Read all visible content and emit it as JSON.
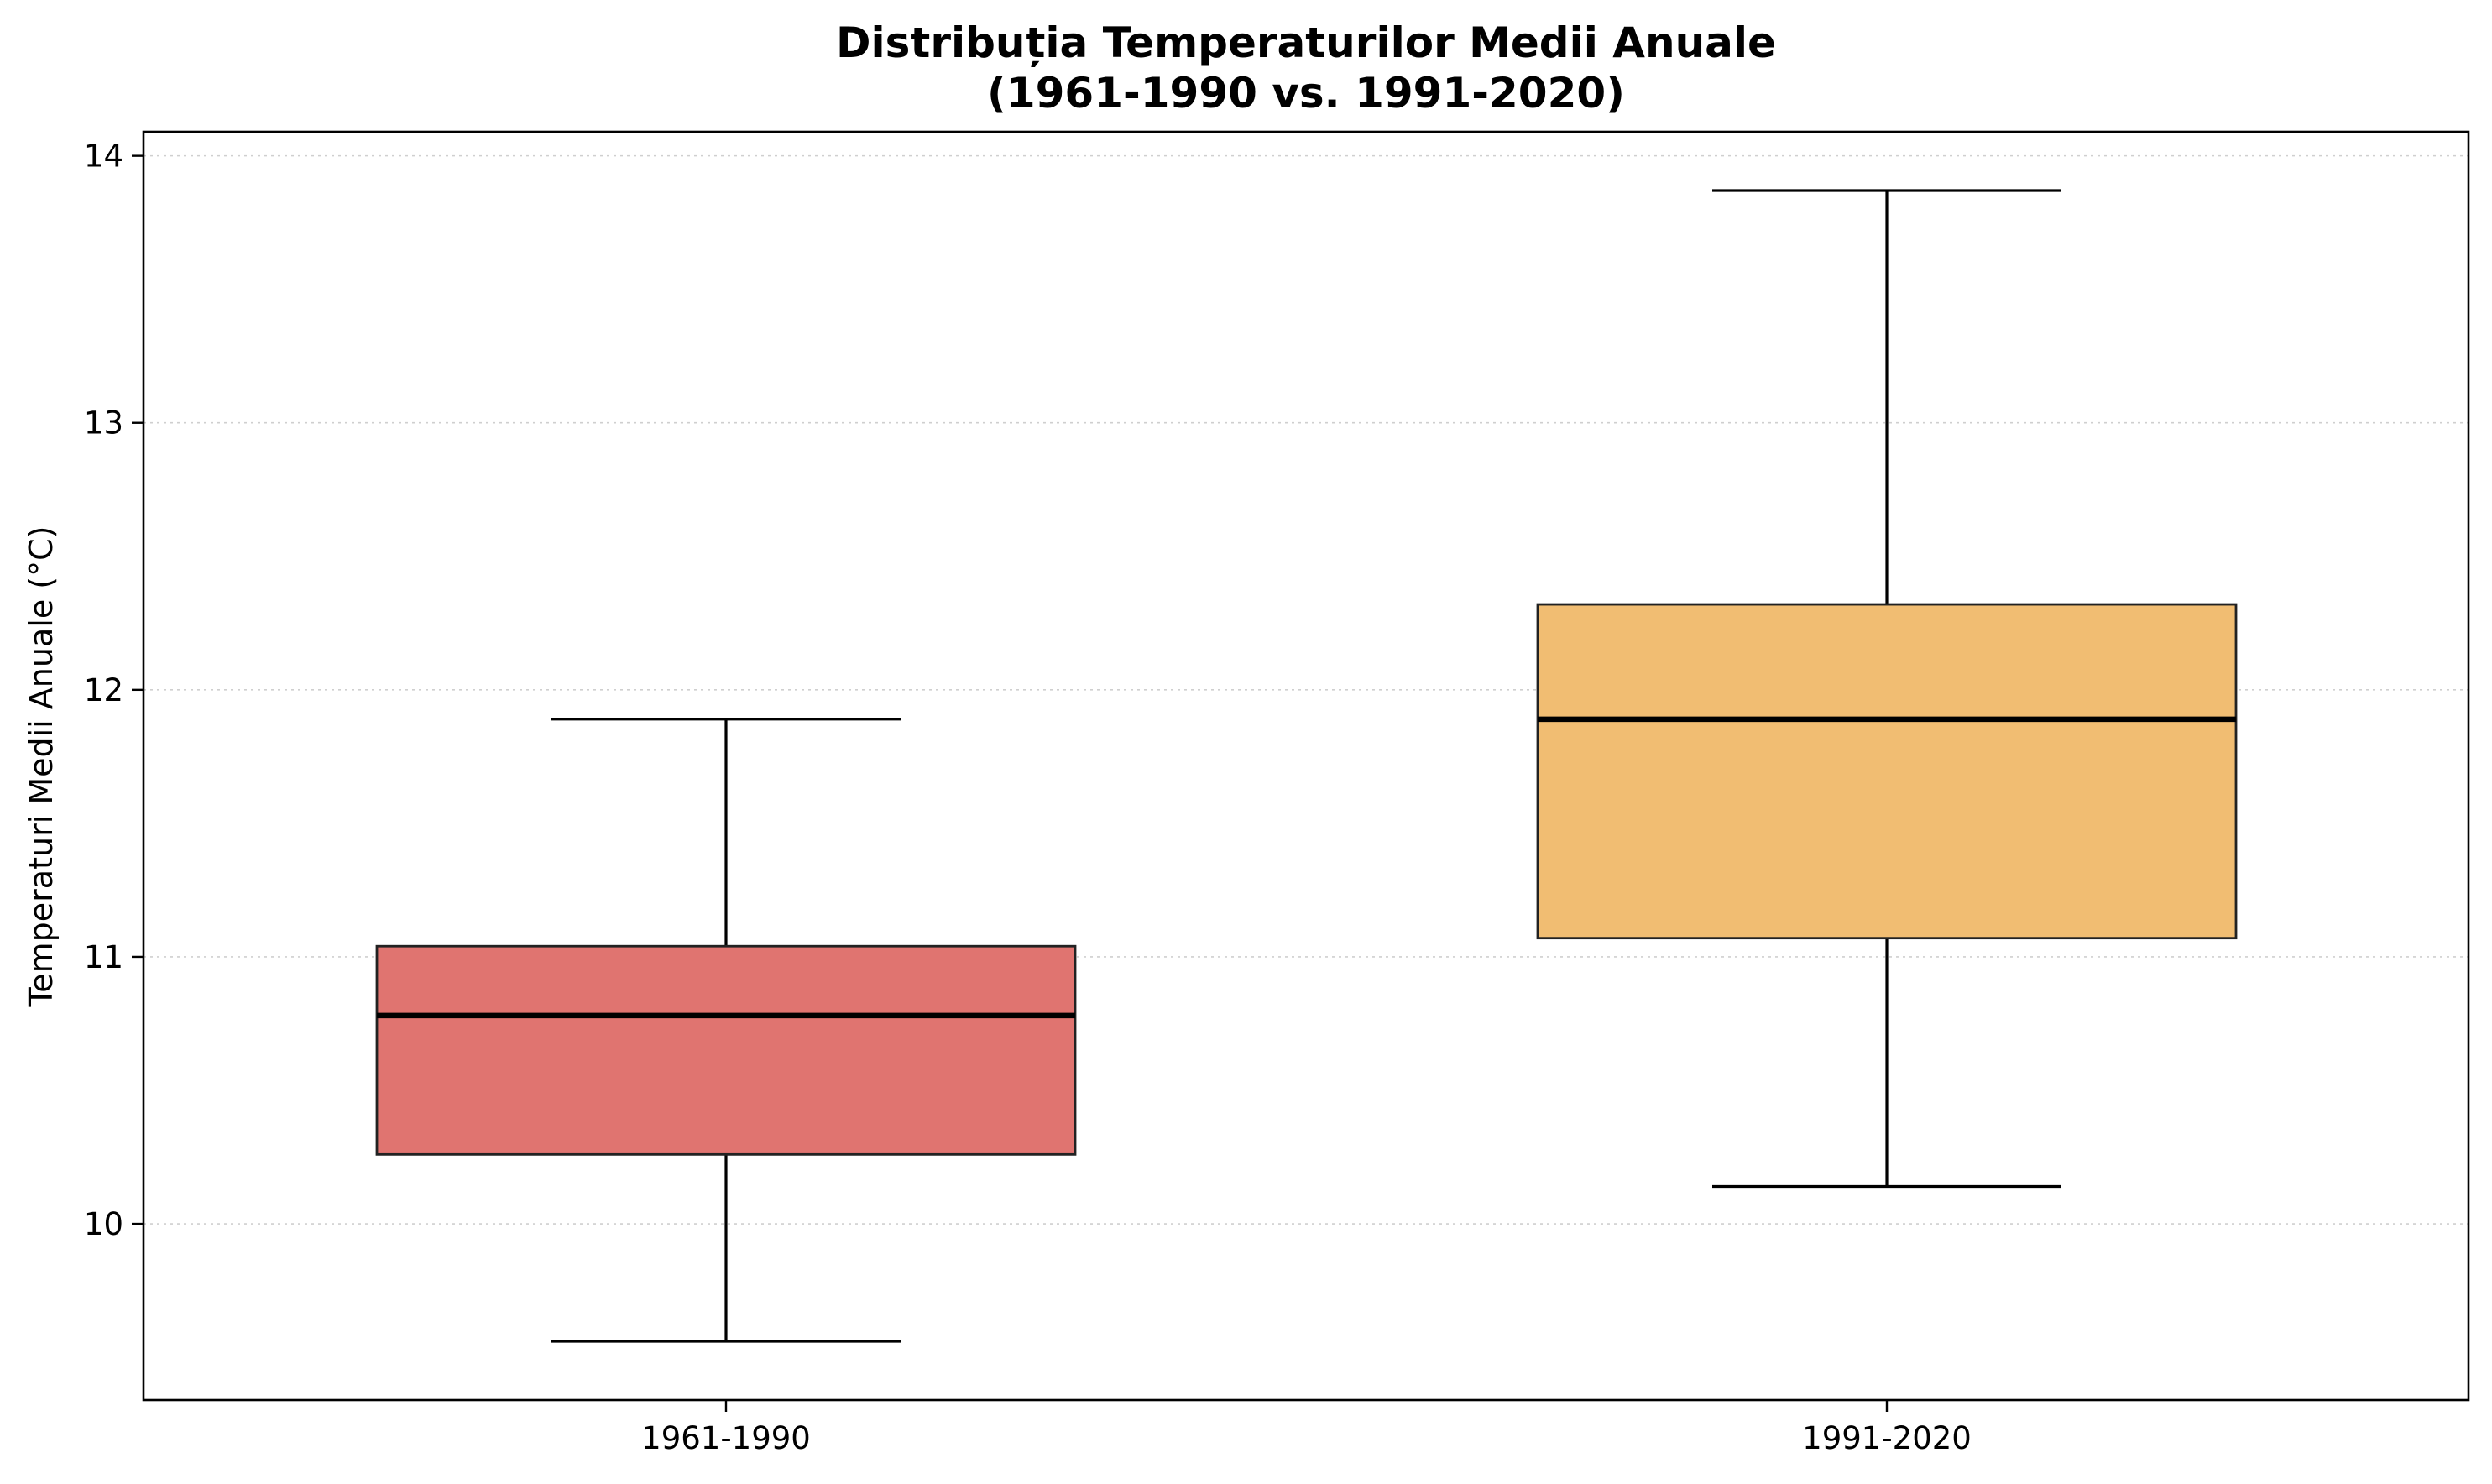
{
  "chart_data": {
    "type": "box",
    "title_lines": [
      "Distribuția Temperaturilor Medii Anuale",
      "(1961-1990 vs. 1991-2020)"
    ],
    "xlabel": "",
    "ylabel": "Temperaturi Medii Anuale (°C)",
    "ylim": [
      9.34,
      14.09
    ],
    "yticks": [
      10,
      11,
      12,
      13,
      14
    ],
    "grid": "horizontal, dotted",
    "categories": [
      "1961-1990",
      "1991-2020"
    ],
    "boxes": [
      {
        "label": "1961-1990",
        "whisker_low": 9.56,
        "q1": 10.26,
        "median": 10.78,
        "q3": 11.04,
        "whisker_high": 11.89,
        "color": "#e07470"
      },
      {
        "label": "1991-2020",
        "whisker_low": 10.14,
        "q1": 11.07,
        "median": 11.89,
        "q3": 12.32,
        "whisker_high": 13.87,
        "color": "#f1bd72"
      }
    ]
  }
}
